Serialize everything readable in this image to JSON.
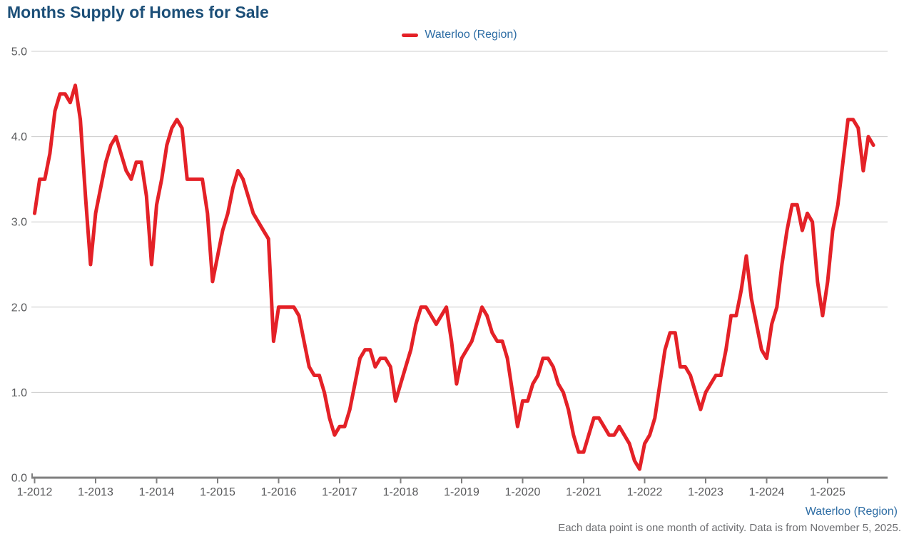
{
  "title": "Months Supply of Homes for Sale",
  "legend": {
    "label": "Waterloo (Region)",
    "color": "#e42127"
  },
  "footer": {
    "series_label": "Waterloo (Region)",
    "note": "Each data point is one month of activity. Data is from November 5, 2025."
  },
  "colors": {
    "accent": "#e42127",
    "title": "#1c4f78",
    "link": "#2e6da4",
    "tick_text": "#58595b",
    "muted_text": "#6d6e71",
    "gridline": "#cccccc",
    "axis": "#7f7f7f"
  },
  "chart_data": {
    "type": "line",
    "title": "Months Supply of Homes for Sale",
    "xlabel": "",
    "ylabel": "",
    "ylim": [
      0,
      5
    ],
    "grid": "horizontal",
    "legend_position": "top-center",
    "y_ticks": [
      0,
      1,
      2,
      3,
      4,
      5
    ],
    "y_tick_labels": [
      "0.0",
      "1.0",
      "2.0",
      "3.0",
      "4.0",
      "5.0"
    ],
    "x_tick_labels": [
      "1-2012",
      "1-2013",
      "1-2014",
      "1-2015",
      "1-2016",
      "1-2017",
      "1-2018",
      "1-2019",
      "1-2020",
      "1-2021",
      "1-2022",
      "1-2023",
      "1-2024",
      "1-2025"
    ],
    "x_tick_month_step": 12,
    "series": [
      {
        "name": "Waterloo (Region)",
        "color": "#e42127",
        "start_month": "2012-01",
        "end_month": "2025-10",
        "months_per_point": 1,
        "values": [
          3.1,
          3.5,
          3.5,
          3.8,
          4.3,
          4.5,
          4.5,
          4.4,
          4.6,
          4.2,
          3.3,
          2.5,
          3.1,
          3.4,
          3.7,
          3.9,
          4.0,
          3.8,
          3.6,
          3.5,
          3.7,
          3.7,
          3.3,
          2.5,
          3.2,
          3.5,
          3.9,
          4.1,
          4.2,
          4.1,
          3.5,
          3.5,
          3.5,
          3.5,
          3.1,
          2.3,
          2.6,
          2.9,
          3.1,
          3.4,
          3.6,
          3.5,
          3.3,
          3.1,
          3.0,
          2.9,
          2.8,
          1.6,
          2.0,
          2.0,
          2.0,
          2.0,
          1.9,
          1.6,
          1.3,
          1.2,
          1.2,
          1.0,
          0.7,
          0.5,
          0.6,
          0.6,
          0.8,
          1.1,
          1.4,
          1.5,
          1.5,
          1.3,
          1.4,
          1.4,
          1.3,
          0.9,
          1.1,
          1.3,
          1.5,
          1.8,
          2.0,
          2.0,
          1.9,
          1.8,
          1.9,
          2.0,
          1.6,
          1.1,
          1.4,
          1.5,
          1.6,
          1.8,
          2.0,
          1.9,
          1.7,
          1.6,
          1.6,
          1.4,
          1.0,
          0.6,
          0.9,
          0.9,
          1.1,
          1.2,
          1.4,
          1.4,
          1.3,
          1.1,
          1.0,
          0.8,
          0.5,
          0.3,
          0.3,
          0.5,
          0.7,
          0.7,
          0.6,
          0.5,
          0.5,
          0.6,
          0.5,
          0.4,
          0.2,
          0.1,
          0.4,
          0.5,
          0.7,
          1.1,
          1.5,
          1.7,
          1.7,
          1.3,
          1.3,
          1.2,
          1.0,
          0.8,
          1.0,
          1.1,
          1.2,
          1.2,
          1.5,
          1.9,
          1.9,
          2.2,
          2.6,
          2.1,
          1.8,
          1.5,
          1.4,
          1.8,
          2.0,
          2.5,
          2.9,
          3.2,
          3.2,
          2.9,
          3.1,
          3.0,
          2.3,
          1.9,
          2.3,
          2.9,
          3.2,
          3.7,
          4.2,
          4.2,
          4.1,
          3.6,
          4.0,
          3.9
        ]
      }
    ]
  }
}
